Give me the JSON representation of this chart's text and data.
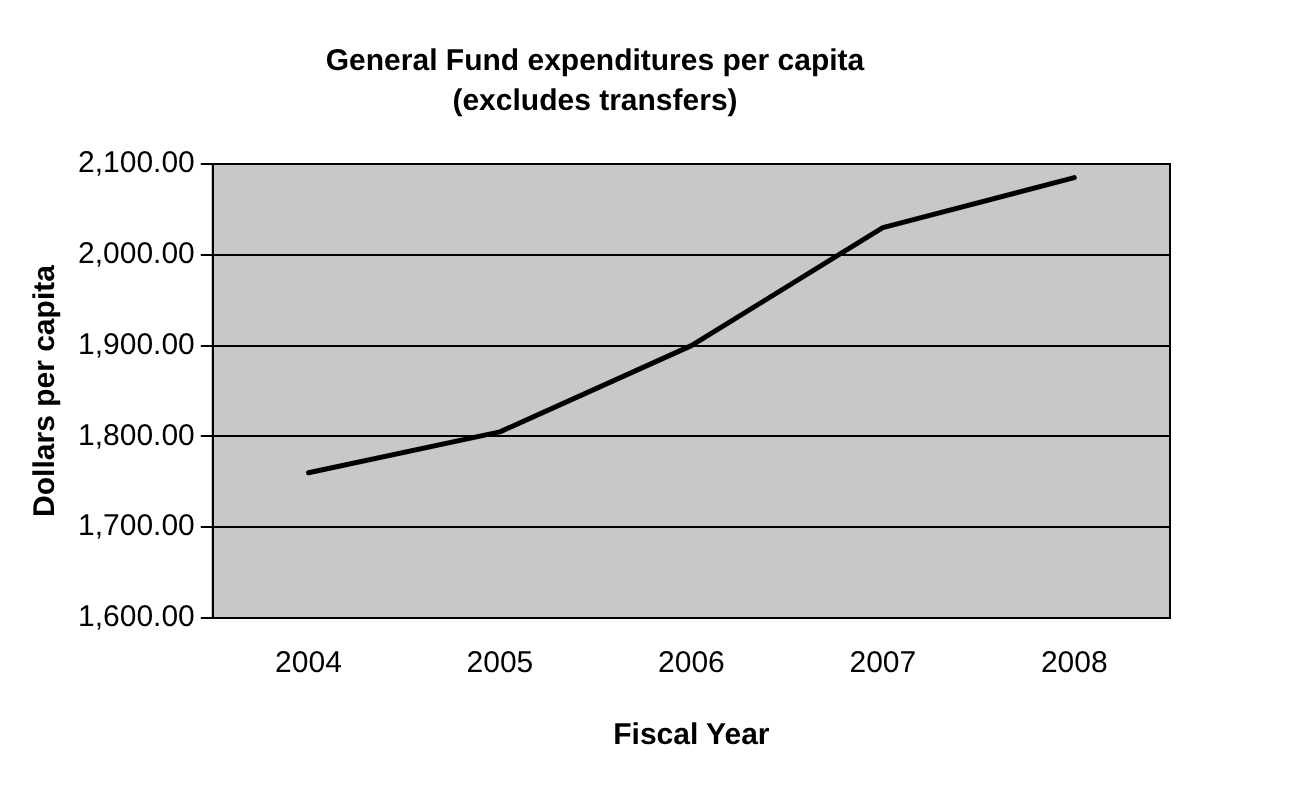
{
  "chart_data": {
    "type": "line",
    "title": "General Fund expenditures per capita",
    "subtitle": "(excludes transfers)",
    "xlabel": "Fiscal Year",
    "ylabel": "Dollars per capita",
    "categories": [
      "2004",
      "2005",
      "2006",
      "2007",
      "2008"
    ],
    "series": [
      {
        "color": "#000000",
        "values": [
          1760,
          1805,
          1900,
          2030,
          2085
        ]
      }
    ],
    "ylim": [
      1600,
      2100
    ],
    "yticks": [
      {
        "value": 1600,
        "label": "1,600.00"
      },
      {
        "value": 1700,
        "label": "1,700.00"
      },
      {
        "value": 1800,
        "label": "1,800.00"
      },
      {
        "value": 1900,
        "label": "1,900.00"
      },
      {
        "value": 2000,
        "label": "2,000.00"
      },
      {
        "value": 2100,
        "label": "2,100.00"
      }
    ],
    "grid": "y",
    "legend": false,
    "marker": "none",
    "line_style": "solid"
  }
}
